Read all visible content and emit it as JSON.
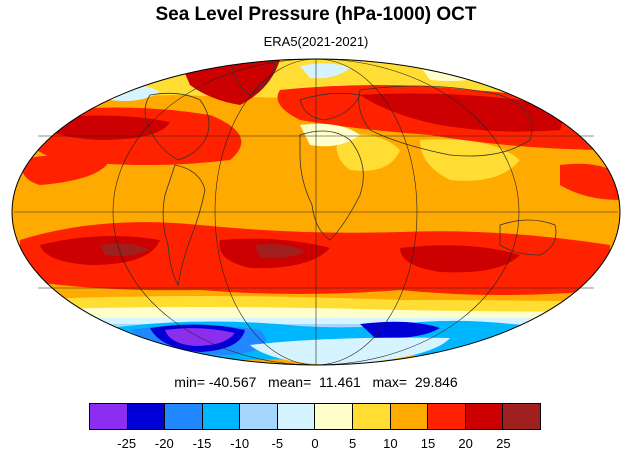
{
  "title": "Sea Level Pressure (hPa-1000) OCT",
  "subtitle": "ERA5(2021-2021)",
  "stats": {
    "text": "min= -40.567   mean=  11.461   max=  29.846",
    "min": -40.567,
    "mean": 11.461,
    "max": 29.846
  },
  "map": {
    "projection": "mollweide",
    "variable": "sea level pressure anomaly from 1000 hPa",
    "month": "OCT",
    "graticule": true
  },
  "colorbar": {
    "colors": [
      "#8b2ef0",
      "#0000d6",
      "#2288ff",
      "#00b7ff",
      "#a6d8ff",
      "#d6f4ff",
      "#ffffcc",
      "#ffdd33",
      "#ffaa00",
      "#ff2200",
      "#cc0000",
      "#a02020"
    ],
    "labels": [
      "-25",
      "-20",
      "-15",
      "-10",
      "-5",
      "0",
      "5",
      "10",
      "15",
      "20",
      "25"
    ]
  }
}
